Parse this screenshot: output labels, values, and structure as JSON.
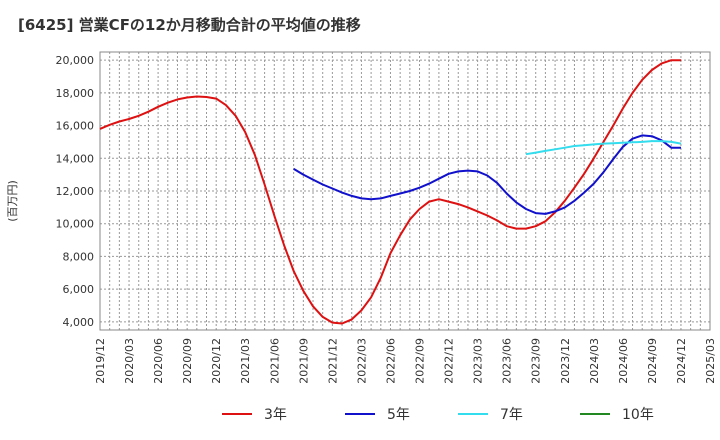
{
  "chart_data": {
    "type": "line",
    "title": "[6425]  営業CFの12か月移動合計の平均値の推移",
    "ylabel": "(百万円)",
    "xlabel": "",
    "ylim": [
      3500,
      20500
    ],
    "yticks": [
      4000,
      6000,
      8000,
      10000,
      12000,
      14000,
      16000,
      18000,
      20000
    ],
    "ytick_labels": [
      "4,000",
      "6,000",
      "8,000",
      "10,000",
      "12,000",
      "14,000",
      "16,000",
      "18,000",
      "20,000"
    ],
    "xticks": [
      "2019/12",
      "2020/03",
      "2020/06",
      "2020/09",
      "2020/12",
      "2021/03",
      "2021/06",
      "2021/09",
      "2021/12",
      "2022/03",
      "2022/06",
      "2022/09",
      "2022/12",
      "2023/03",
      "2023/06",
      "2023/09",
      "2023/12",
      "2024/03",
      "2024/06",
      "2024/09",
      "2024/12",
      "2025/03"
    ],
    "grid": true,
    "legend_position": "bottom",
    "series": [
      {
        "name": "3年",
        "color": "#dd1111",
        "x": [
          "2019/12",
          "2020/01",
          "2020/02",
          "2020/03",
          "2020/04",
          "2020/05",
          "2020/06",
          "2020/07",
          "2020/08",
          "2020/09",
          "2020/10",
          "2020/11",
          "2020/12",
          "2021/01",
          "2021/02",
          "2021/03",
          "2021/04",
          "2021/05",
          "2021/06",
          "2021/07",
          "2021/08",
          "2021/09",
          "2021/10",
          "2021/11",
          "2021/12",
          "2022/01",
          "2022/02",
          "2022/03",
          "2022/04",
          "2022/05",
          "2022/06",
          "2022/07",
          "2022/08",
          "2022/09",
          "2022/10",
          "2022/11",
          "2022/12",
          "2023/01",
          "2023/02",
          "2023/03",
          "2023/04",
          "2023/05",
          "2023/06",
          "2023/07",
          "2023/08",
          "2023/09",
          "2023/10",
          "2023/11",
          "2023/12",
          "2024/01",
          "2024/02",
          "2024/03",
          "2024/04",
          "2024/05",
          "2024/06",
          "2024/07",
          "2024/08",
          "2024/09",
          "2024/10",
          "2024/11",
          "2024/12"
        ],
        "values": [
          15800,
          16050,
          16250,
          16400,
          16600,
          16850,
          17150,
          17400,
          17600,
          17720,
          17780,
          17750,
          17650,
          17250,
          16600,
          15600,
          14200,
          12400,
          10500,
          8700,
          7100,
          5900,
          4950,
          4300,
          3950,
          3900,
          4150,
          4700,
          5500,
          6700,
          8200,
          9300,
          10250,
          10900,
          11350,
          11500,
          11350,
          11200,
          11000,
          10750,
          10500,
          10200,
          9850,
          9700,
          9700,
          9850,
          10150,
          10700,
          11400,
          12200,
          13050,
          14000,
          15000,
          16000,
          17050,
          18000,
          18800,
          19400,
          19800,
          20000,
          20000
        ]
      },
      {
        "name": "5年",
        "color": "#1111cc",
        "x": [
          "2021/08",
          "2021/09",
          "2021/10",
          "2021/11",
          "2021/12",
          "2022/01",
          "2022/02",
          "2022/03",
          "2022/04",
          "2022/05",
          "2022/06",
          "2022/07",
          "2022/08",
          "2022/09",
          "2022/10",
          "2022/11",
          "2022/12",
          "2023/01",
          "2023/02",
          "2023/03",
          "2023/04",
          "2023/05",
          "2023/06",
          "2023/07",
          "2023/08",
          "2023/09",
          "2023/10",
          "2023/11",
          "2023/12",
          "2024/01",
          "2024/02",
          "2024/03",
          "2024/04",
          "2024/05",
          "2024/06",
          "2024/07",
          "2024/08",
          "2024/09",
          "2024/10",
          "2024/11",
          "2024/12"
        ],
        "values": [
          13350,
          13000,
          12700,
          12400,
          12150,
          11900,
          11700,
          11550,
          11500,
          11550,
          11700,
          11850,
          12000,
          12200,
          12450,
          12750,
          13050,
          13200,
          13250,
          13200,
          12950,
          12500,
          11850,
          11300,
          10900,
          10650,
          10600,
          10750,
          11000,
          11400,
          11900,
          12450,
          13150,
          13950,
          14700,
          15200,
          15400,
          15350,
          15100,
          14650,
          14650
        ]
      },
      {
        "name": "7年",
        "color": "#33ddee",
        "x": [
          "2023/08",
          "2023/09",
          "2023/10",
          "2023/11",
          "2023/12",
          "2024/01",
          "2024/02",
          "2024/03",
          "2024/04",
          "2024/05",
          "2024/06",
          "2024/07",
          "2024/08",
          "2024/09",
          "2024/10",
          "2024/11",
          "2024/12"
        ],
        "values": [
          14250,
          14350,
          14450,
          14550,
          14650,
          14750,
          14800,
          14850,
          14900,
          14920,
          14950,
          14980,
          15000,
          15050,
          15050,
          15000,
          14900
        ]
      },
      {
        "name": "10年",
        "color": "#228822",
        "x": [],
        "values": []
      }
    ]
  }
}
